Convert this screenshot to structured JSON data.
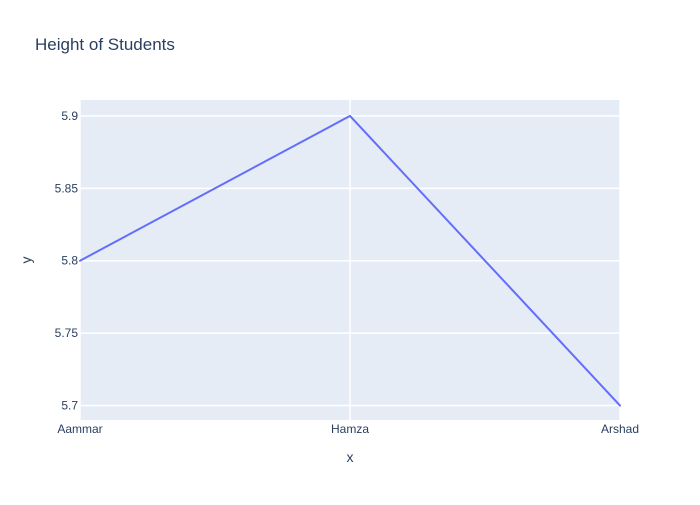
{
  "chart_data": {
    "type": "line",
    "title": "Height of Students",
    "xlabel": "x",
    "ylabel": "y",
    "categories": [
      "Aammar",
      "Hamza",
      "Arshad"
    ],
    "series": [
      {
        "values": [
          5.8,
          5.9,
          5.7
        ]
      }
    ],
    "ylim": [
      5.69,
      5.911
    ],
    "yticks": [
      5.7,
      5.75,
      5.8,
      5.85,
      5.9
    ],
    "ytick_labels": [
      "5.7",
      "5.75",
      "5.8",
      "5.85",
      "5.9"
    ],
    "grid": true,
    "line_color": "#636efa",
    "plot_background": "#e5ecf6",
    "gridline_color": "#ffffff"
  }
}
